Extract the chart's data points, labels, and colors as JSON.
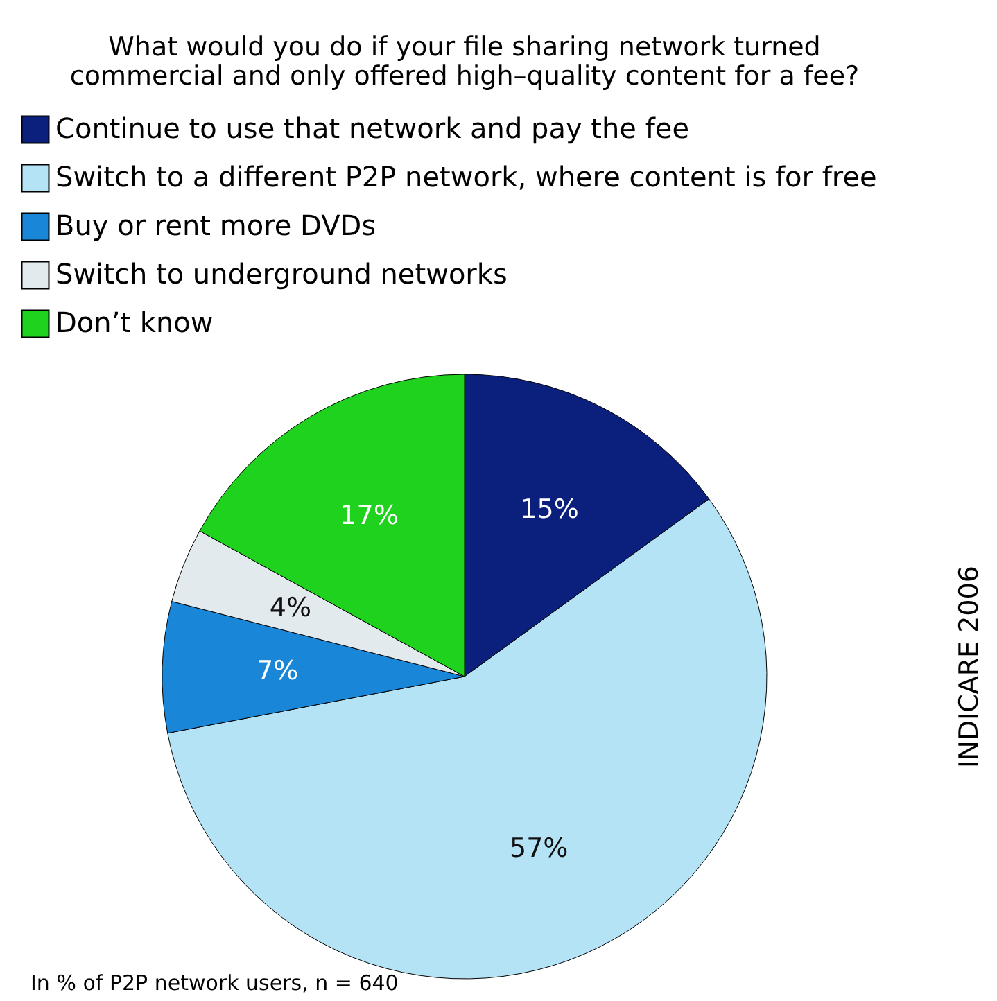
{
  "chart_data": {
    "type": "pie",
    "title": "What would you do if your file sharing network turned commercial and only offered high–quality content for a fee?",
    "categories": [
      "Continue to use that network and pay the fee",
      "Switch to a different P2P network, where content is for free",
      "Buy or rent more DVDs",
      "Switch to underground networks",
      "Don’t know"
    ],
    "values": [
      15,
      57,
      7,
      4,
      17
    ],
    "value_labels": [
      "15%",
      "57%",
      "7%",
      "4%",
      "17%"
    ],
    "colors": [
      "#0b1f7c",
      "#b5e3f6",
      "#1a86d8",
      "#e2eaee",
      "#1ed21e"
    ],
    "legend": "top",
    "annotations": [
      "In % of P2P network users, n = 640",
      "INDICARE 2006"
    ]
  }
}
